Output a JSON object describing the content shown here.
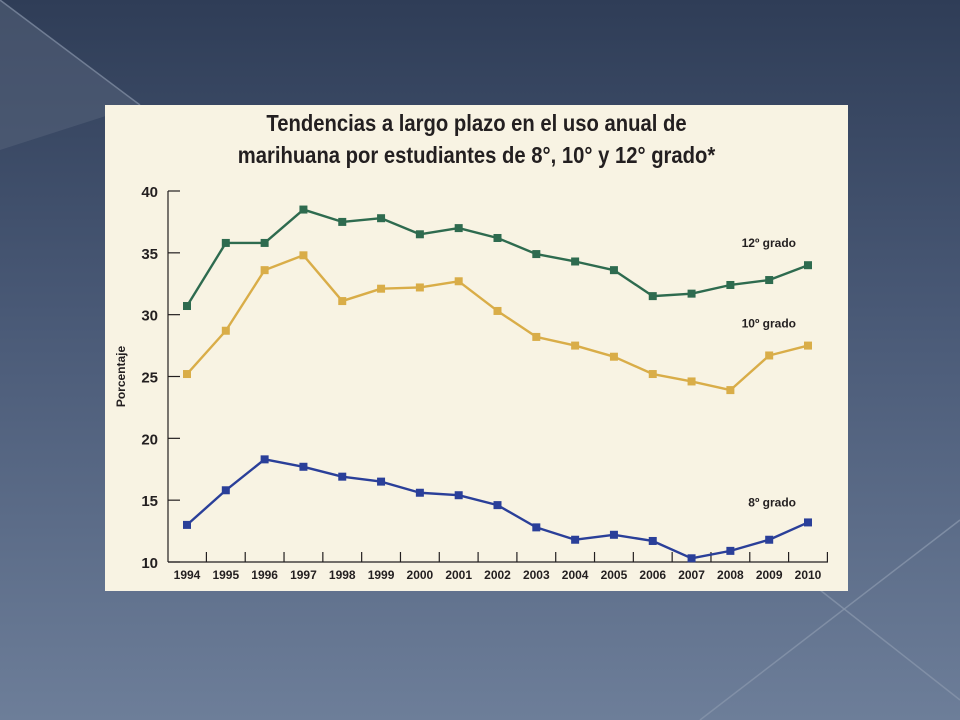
{
  "chart_data": {
    "type": "line",
    "title_line1": "Tendencias a largo plazo en el uso anual de",
    "title_line2": "marihuana por estudiantes de 8°, 10° y 12° grado*",
    "ylabel": "Porcentaje",
    "xlabel": "",
    "ylim": [
      10,
      40
    ],
    "yticks": [
      10,
      15,
      20,
      25,
      30,
      35,
      40
    ],
    "x": [
      "1994",
      "1995",
      "1996",
      "1997",
      "1998",
      "1999",
      "2000",
      "2001",
      "2002",
      "2003",
      "2004",
      "2005",
      "2006",
      "2007",
      "2008",
      "2009",
      "2010"
    ],
    "grid": false,
    "series": [
      {
        "name": "12º grado",
        "color": "#2e6b4f",
        "values": [
          30.7,
          35.8,
          35.8,
          38.5,
          37.5,
          37.8,
          36.5,
          37.0,
          36.2,
          34.9,
          34.3,
          33.6,
          31.5,
          31.7,
          32.4,
          32.8,
          34.0
        ]
      },
      {
        "name": "10º grado",
        "color": "#d9ad48",
        "values": [
          25.2,
          28.7,
          33.6,
          34.8,
          31.1,
          32.1,
          32.2,
          32.7,
          30.3,
          28.2,
          27.5,
          26.6,
          25.2,
          24.6,
          23.9,
          26.7,
          27.5
        ]
      },
      {
        "name": "8º grado",
        "color": "#2a3f99",
        "values": [
          13.0,
          15.8,
          18.3,
          17.7,
          16.9,
          16.5,
          15.6,
          15.4,
          14.6,
          12.8,
          11.8,
          12.2,
          11.7,
          10.3,
          10.9,
          11.8,
          13.2
        ]
      }
    ]
  }
}
